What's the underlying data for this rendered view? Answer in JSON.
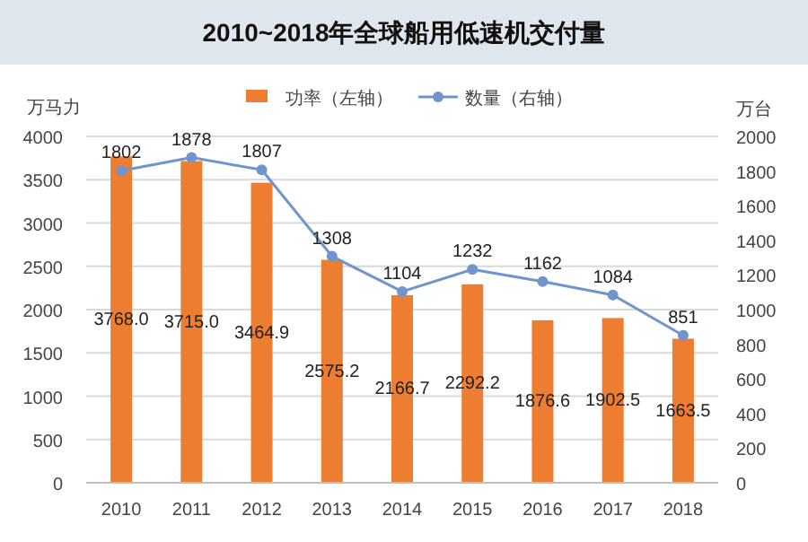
{
  "chart_data": {
    "type": "bar",
    "title": "2010~2018年全球船用低速机交付量",
    "ylabel": "万马力",
    "y2label": "万台",
    "categories": [
      "2010",
      "2011",
      "2012",
      "2013",
      "2014",
      "2015",
      "2016",
      "2017",
      "2018"
    ],
    "series": [
      {
        "name": "功率（左轴）",
        "color": "#ed7d31",
        "values": [
          3768.0,
          3715.0,
          3464.9,
          2575.2,
          2166.7,
          2292.2,
          1876.6,
          1902.5,
          1663.5
        ],
        "value_labels": [
          "3768.0",
          "3715.0",
          "3464.9",
          "2575.2",
          "2166.7",
          "2292.2",
          "1876.6",
          "1902.5",
          "1663.5"
        ]
      },
      {
        "name": "数量（右轴）",
        "type": "line",
        "axis": "y2",
        "color": "#6f95cc",
        "marker": "circle",
        "values": [
          1802,
          1878,
          1807,
          1308,
          1104,
          1232,
          1162,
          1084,
          851
        ],
        "data_labels": true
      }
    ],
    "ylim": [
      0,
      4000
    ],
    "yticks": [
      0,
      500,
      1000,
      1500,
      2000,
      2500,
      3000,
      3500,
      4000
    ],
    "y2lim": [
      0,
      2000
    ],
    "y2ticks": [
      0,
      200,
      400,
      600,
      800,
      1000,
      1200,
      1400,
      1600,
      1800,
      2000
    ],
    "grid": "y",
    "legend": "top"
  }
}
